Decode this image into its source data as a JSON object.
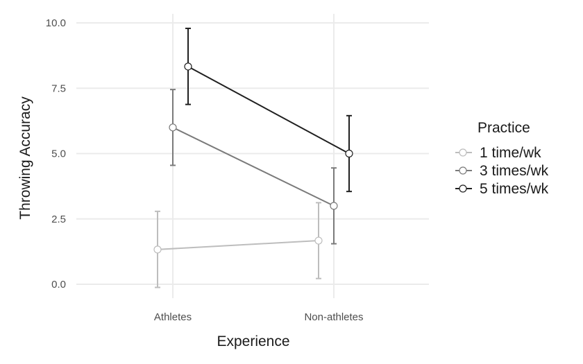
{
  "chart_data": {
    "type": "line",
    "title": "",
    "xlabel": "Experience",
    "ylabel": "Throwing Accuracy",
    "categories": [
      "Athletes",
      "Non-athletes"
    ],
    "ylim": [
      -0.5,
      10.2
    ],
    "yticks": [
      0,
      2.5,
      5,
      7.5,
      10
    ],
    "ytick_labels": [
      "0.0",
      "2.5",
      "5.0",
      "7.5",
      "10.0"
    ],
    "grid": true,
    "legend": {
      "title": "Practice",
      "position": "right"
    },
    "error_bars": true,
    "series": [
      {
        "name": "1 time/wk",
        "color": "#bdbdbd",
        "values": [
          1.33,
          1.67
        ],
        "lower": [
          -0.12,
          0.22
        ],
        "upper": [
          2.79,
          3.12
        ]
      },
      {
        "name": "3 times/wk",
        "color": "#7a7a7a",
        "values": [
          6.0,
          3.0
        ],
        "lower": [
          4.55,
          1.55
        ],
        "upper": [
          7.45,
          4.45
        ]
      },
      {
        "name": "5 times/wk",
        "color": "#1f1f1f",
        "values": [
          8.33,
          5.0
        ],
        "lower": [
          6.88,
          3.55
        ],
        "upper": [
          9.79,
          6.45
        ]
      }
    ]
  }
}
